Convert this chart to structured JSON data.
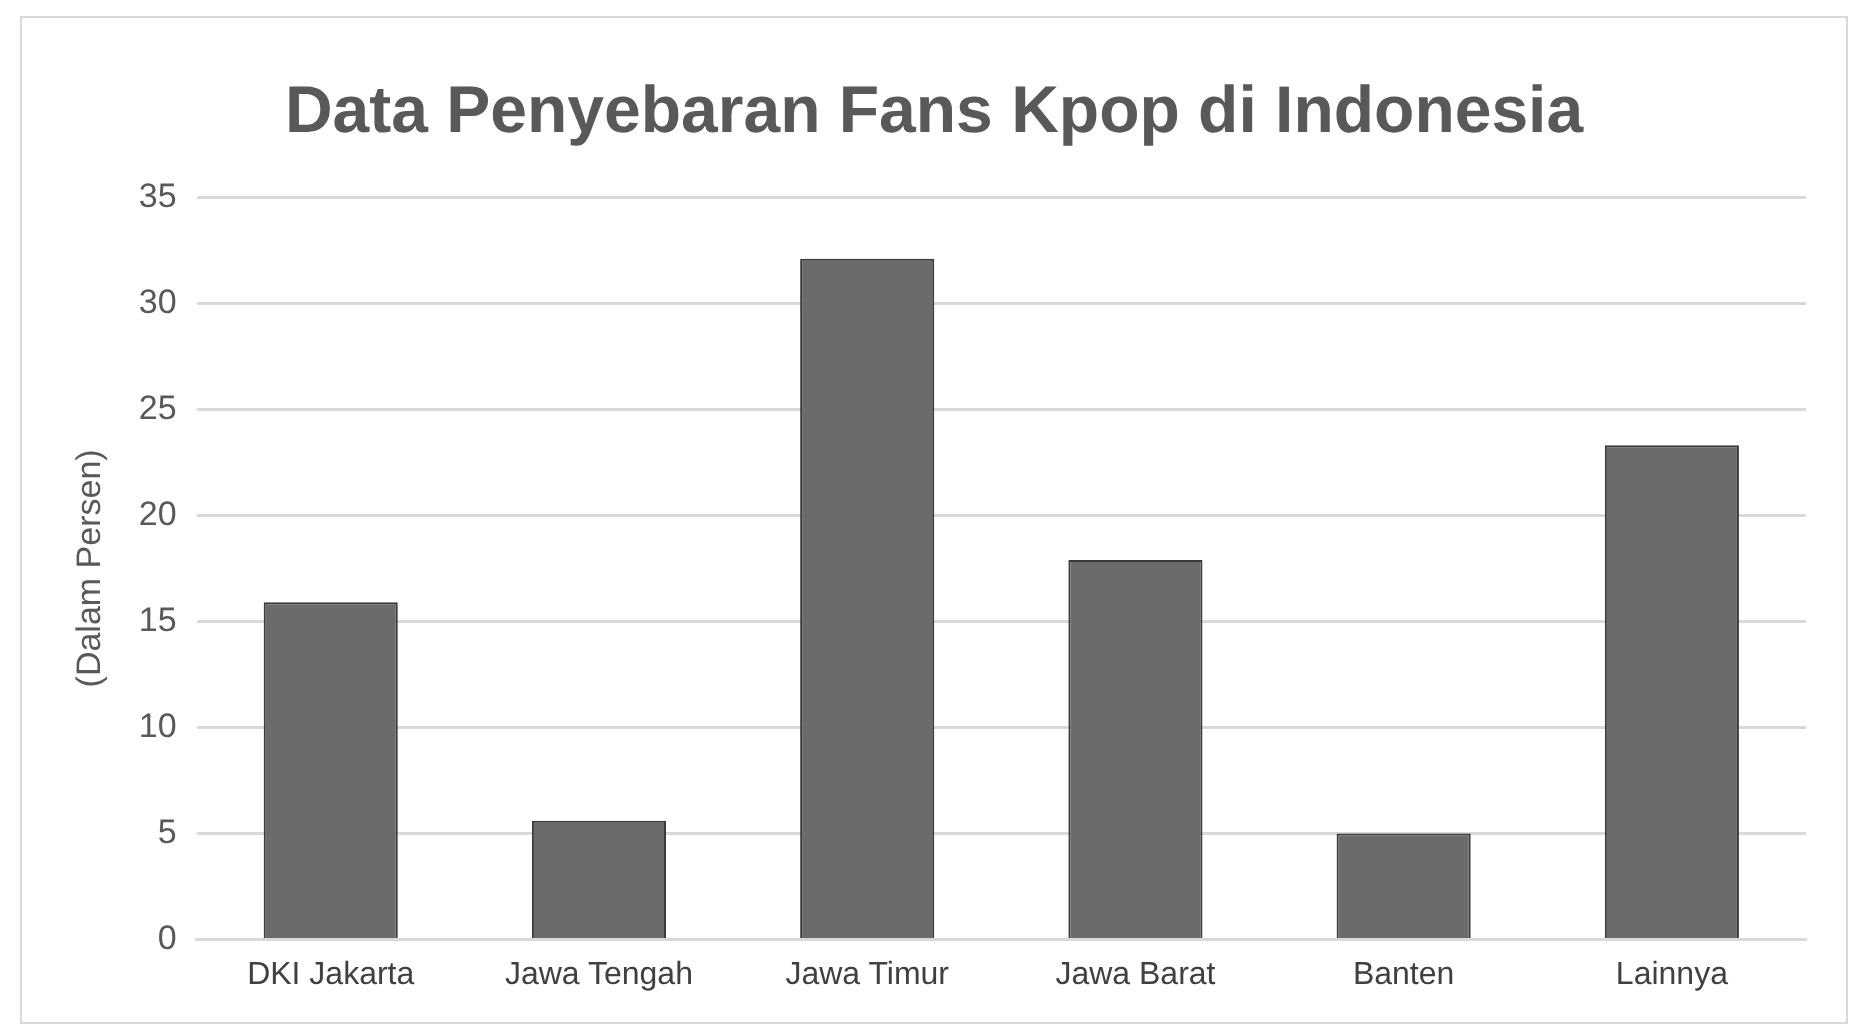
{
  "chart_data": {
    "type": "bar",
    "title": "Data Penyebaran Fans Kpop di Indonesia",
    "ylabel": "(Dalam Persen)",
    "categories": [
      "DKI Jakarta",
      "Jawa Tengah",
      "Jawa Timur",
      "Jawa Barat",
      "Banten",
      "Lainnya"
    ],
    "values": [
      15.9,
      5.6,
      32.1,
      17.9,
      5.0,
      23.3
    ],
    "color": "#6b6b6b",
    "ylim": [
      0,
      35
    ],
    "yticks": [
      0,
      5,
      10,
      15,
      20,
      25,
      30,
      35
    ],
    "grid": "y"
  }
}
